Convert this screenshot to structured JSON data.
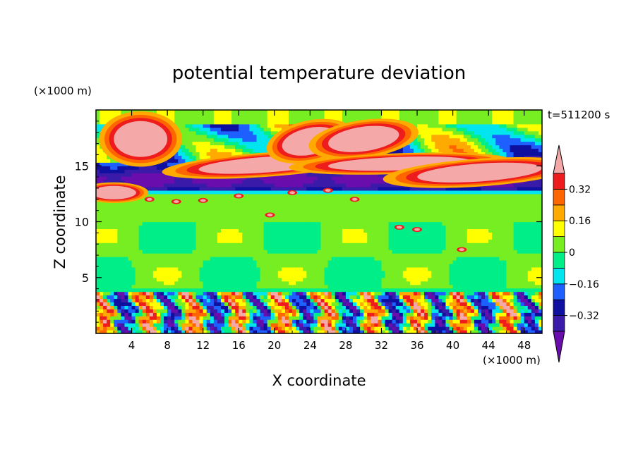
{
  "chart_data": {
    "type": "heatmap",
    "title": "potential temperature deviation",
    "xlabel": "X coordinate",
    "ylabel": "Z coordinate",
    "x_unit": "(×1000 m)",
    "y_unit": "(×1000 m)",
    "time_label": "t=511200 s",
    "xlim": [
      0,
      50
    ],
    "ylim": [
      0,
      20
    ],
    "x_ticks": [
      4,
      8,
      12,
      16,
      20,
      24,
      28,
      32,
      36,
      40,
      44,
      48
    ],
    "y_ticks": [
      5,
      10,
      15
    ],
    "colorbar": {
      "levels": [
        -0.4,
        -0.32,
        -0.24,
        -0.16,
        -0.08,
        0,
        0.08,
        0.16,
        0.24,
        0.32,
        0.4
      ],
      "labels": [
        "0.32",
        "0.16",
        "0",
        "−0.16",
        "−0.32"
      ],
      "label_values": [
        0.32,
        0.16,
        0,
        -0.16,
        -0.32
      ],
      "colors": [
        "#6a0dad",
        "#3a1aa8",
        "#1010a0",
        "#1e60ff",
        "#00e5ee",
        "#00ee88",
        "#77ee22",
        "#ffff00",
        "#ffaa00",
        "#ff6600",
        "#ee1c1c",
        "#f5a8a8"
      ],
      "extend": "both"
    },
    "structure": {
      "surface_layer_top_z": 3.5,
      "tropopause_band_z": [
        12.5,
        15
      ],
      "upper_warm_features": [
        {
          "x": 5,
          "z": 17.5,
          "value": 0.4
        },
        {
          "x": 19,
          "z": 15.3,
          "value": 0.4
        },
        {
          "x": 24,
          "z": 17.3,
          "value": 0.4
        },
        {
          "x": 30,
          "z": 17.5,
          "value": 0.4
        },
        {
          "x": 43,
          "z": 14.5,
          "value": 0.4
        }
      ]
    }
  }
}
